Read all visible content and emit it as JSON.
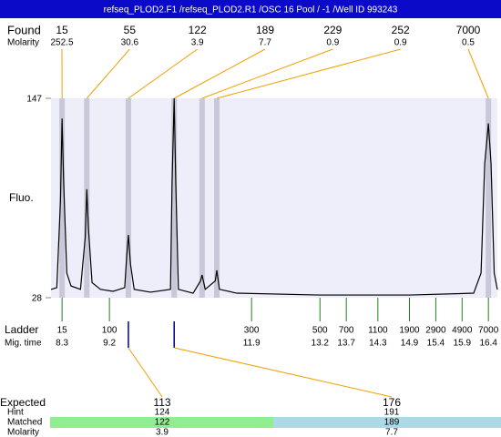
{
  "header": {
    "title": "refseq_PLOD2.F1 /refseq_PLOD2.R1 /OSC 16 Pool / -1 /Well ID 993243"
  },
  "found": {
    "label": "Found",
    "molarity_label": "Molarity",
    "peaks": [
      {
        "size": 15,
        "molarity": 252.5,
        "time": 8.3
      },
      {
        "size": 55,
        "molarity": 30.6,
        "time": 8.77
      },
      {
        "size": 122,
        "molarity": 3.9,
        "time": 9.56
      },
      {
        "size": 189,
        "molarity": 7.7,
        "time": 10.43
      },
      {
        "size": 229,
        "molarity": 0.9,
        "time": 10.96
      },
      {
        "size": 252,
        "molarity": 0.9,
        "time": 11.24
      },
      {
        "size": 7000,
        "molarity": 0.5,
        "time": 16.4
      }
    ]
  },
  "chart_data": {
    "type": "line",
    "y_label": "Fluo.",
    "xlim": [
      8.09,
      16.57
    ],
    "ylim": [
      28,
      147
    ],
    "yticks": [
      28,
      147
    ],
    "x": [
      8.09,
      8.2,
      8.27,
      8.3,
      8.33,
      8.39,
      8.47,
      8.65,
      8.74,
      8.77,
      8.8,
      8.87,
      9.03,
      9.27,
      9.49,
      9.53,
      9.56,
      9.6,
      9.67,
      9.98,
      10.36,
      10.39,
      10.43,
      10.46,
      10.51,
      10.79,
      10.93,
      10.96,
      11.02,
      11.21,
      11.24,
      11.29,
      11.62,
      13.18,
      14.91,
      16.12,
      16.26,
      16.33,
      16.4,
      16.45,
      16.51,
      16.57
    ],
    "values": [
      32.9,
      34,
      86,
      135,
      97,
      42.7,
      35,
      33,
      64,
      92.7,
      70,
      37,
      33,
      31.8,
      34,
      53.5,
      65.5,
      48,
      33,
      31.3,
      33,
      97,
      147,
      97,
      33,
      30.7,
      38,
      41.6,
      33,
      38,
      44.3,
      33,
      30.7,
      29.6,
      29.6,
      30.7,
      42.7,
      108,
      132,
      108,
      42.7,
      32.9
    ],
    "color": "#000000"
  },
  "ladder": {
    "label": "Ladder",
    "time_label": "Mig. time",
    "sizes": [
      15,
      100,
      300,
      500,
      700,
      1100,
      1900,
      2900,
      4900,
      7000
    ],
    "times": [
      8.3,
      9.2,
      11.9,
      13.2,
      13.7,
      14.3,
      14.9,
      15.4,
      15.9,
      16.4
    ]
  },
  "expected": {
    "label": "Expected",
    "hint_label": "Hint",
    "matched_label": "Matched",
    "molarity_label": "Molarity",
    "items": [
      {
        "expected": 113,
        "hint": 124,
        "matched": 122,
        "molarity": 3.9
      },
      {
        "expected": 176,
        "hint": 191,
        "matched": 189,
        "molarity": 7.7
      }
    ]
  }
}
